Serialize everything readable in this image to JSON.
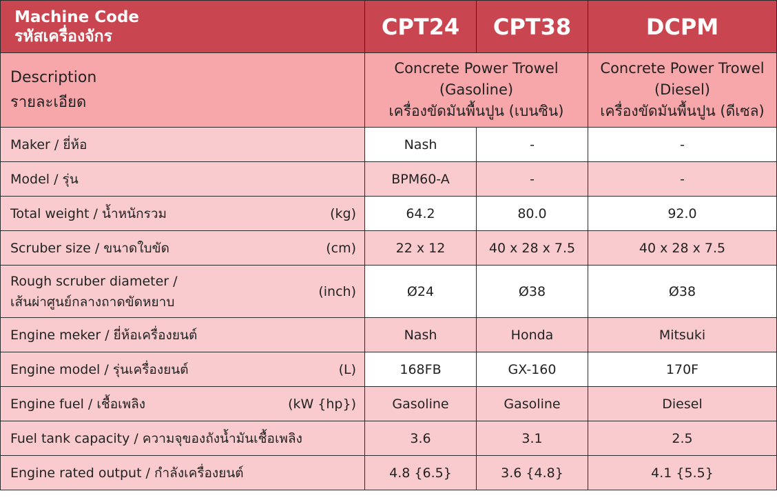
{
  "header": {
    "label_en": "Machine Code",
    "label_th": "รหัสเครื่องจักร",
    "codes": [
      "CPT24",
      "CPT38",
      "DCPM"
    ]
  },
  "description": {
    "label_en": "Description",
    "label_th": "รายละเอียด",
    "gasoline": [
      "Concrete Power Trowel",
      "(Gasoline)",
      "เครื่องขัดมันพื้นปูน (เบนซิน)"
    ],
    "diesel": [
      "Concrete Power Trowel",
      "(Diesel)",
      "เครื่องขัดมันพื้นปูน (ดีเซล)"
    ]
  },
  "colors": {
    "header": "#c9454f",
    "description": "#f7a6aa",
    "label": "#f9cbce",
    "white": "#ffffff"
  },
  "rows": [
    {
      "label": "Maker / ยี่ห้อ",
      "unit": "",
      "values": [
        "Nash",
        "-",
        "-"
      ]
    },
    {
      "label": "Model / รุ่น",
      "unit": "",
      "values": [
        "BPM60-A",
        "-",
        "-"
      ]
    },
    {
      "label": "Total weight / น้ำหนักรวม",
      "unit": "(kg)",
      "values": [
        "64.2",
        "80.0",
        "92.0"
      ]
    },
    {
      "label": "Scruber size / ขนาดใบขัด",
      "unit": "(cm)",
      "values": [
        "22 x 12",
        "40 x 28 x 7.5",
        "40 x 28 x 7.5"
      ]
    },
    {
      "label": "Rough scruber diameter /",
      "label2": "เส้นผ่าศูนย์กลางถาดขัดหยาบ",
      "unit": "(inch)",
      "values": [
        "Ø24",
        "Ø38",
        "Ø38"
      ]
    },
    {
      "label": "Engine meker /  ยี่ห้อเครื่องยนต์",
      "unit": "",
      "values": [
        "Nash",
        "Honda",
        "Mitsuki"
      ]
    },
    {
      "label": "Engine model /  รุ่นเครื่องยนต์",
      "unit": "(L)",
      "values": [
        "168FB",
        "GX-160",
        "170F"
      ]
    },
    {
      "label": "Engine fuel / เชื้อเพลิง",
      "unit": "(kW {hp})",
      "values": [
        "Gasoline",
        "Gasoline",
        "Diesel"
      ]
    },
    {
      "label": "Fuel tank capacity / ความจุของถังน้ำมันเชื้อเพลิง",
      "unit": "",
      "values": [
        "3.6",
        "3.1",
        "2.5"
      ]
    },
    {
      "label": "Engine rated output /  กำลังเครื่องยนต์",
      "unit": "",
      "values": [
        "4.8 {6.5}",
        "3.6 {4.8}",
        "4.1 {5.5}"
      ]
    }
  ]
}
